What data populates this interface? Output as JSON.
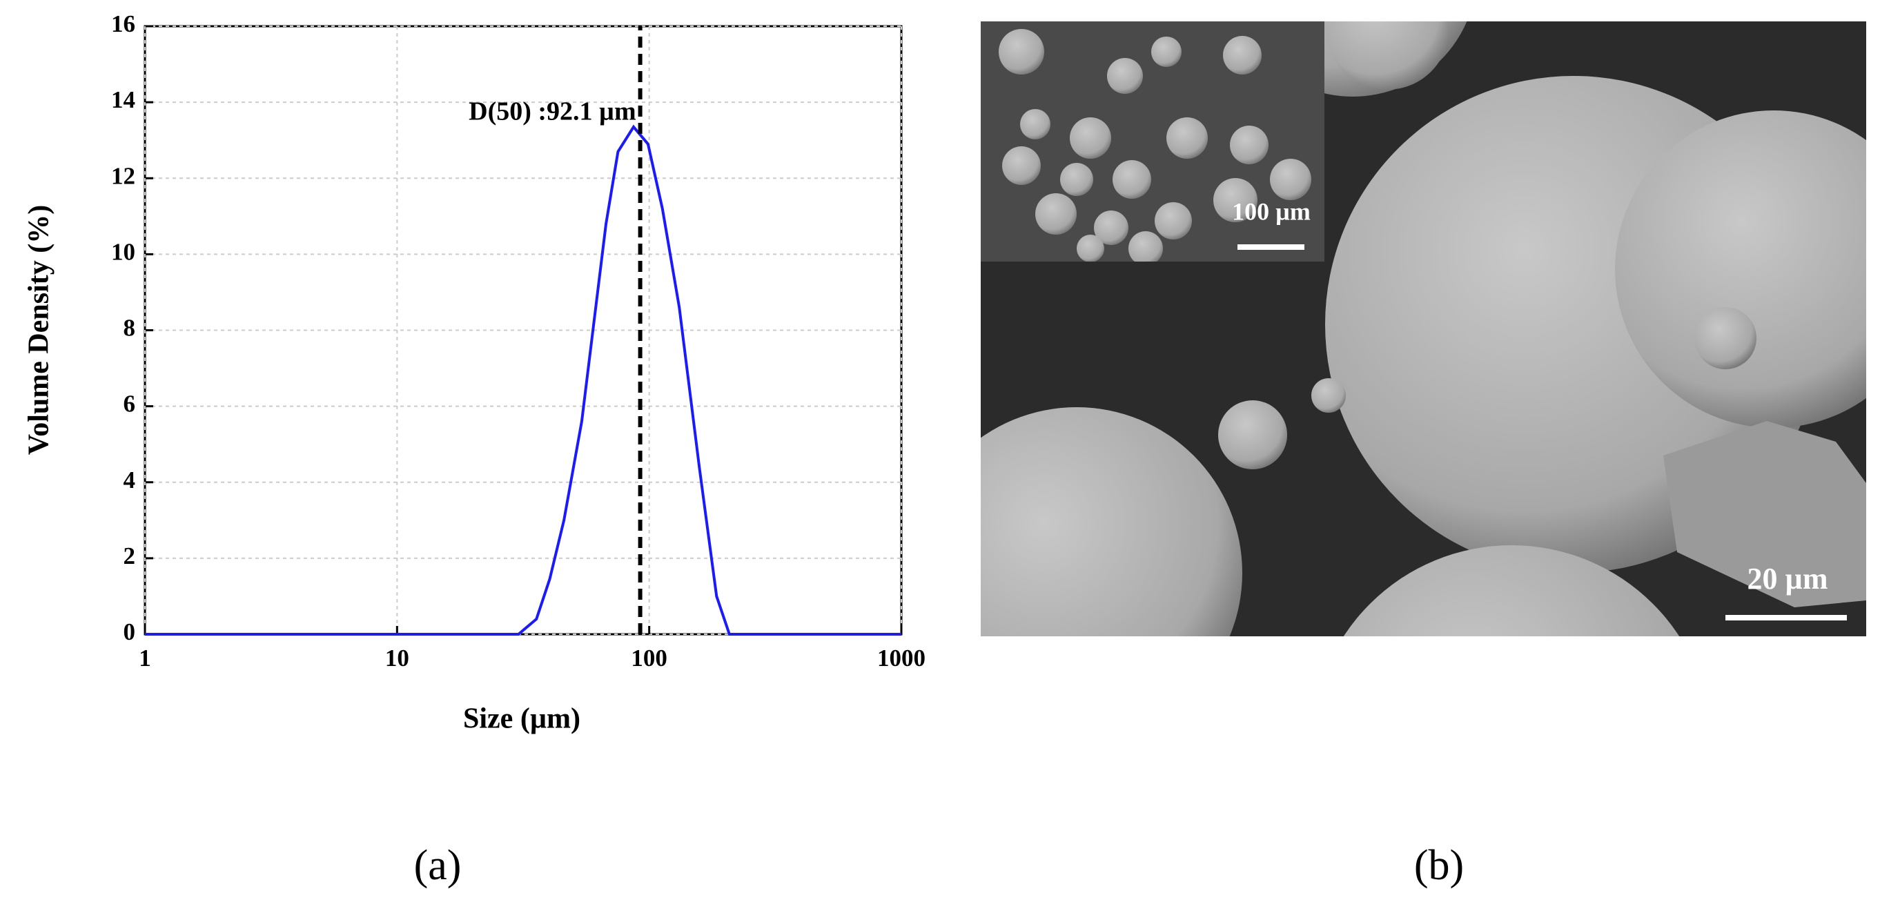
{
  "chart_data": {
    "type": "line",
    "x_label": "Size (µm)",
    "y_label": "Volume Density (%)",
    "xscale": "log",
    "xlim": [
      1,
      1000
    ],
    "xticks": [
      1,
      10,
      100,
      1000
    ],
    "ylim": [
      0,
      16
    ],
    "yticks": [
      0,
      2,
      4,
      6,
      8,
      10,
      12,
      14,
      16
    ],
    "grid": true,
    "x": [
      1,
      30.3,
      35.7,
      40.3,
      45.9,
      54,
      67.4,
      75.2,
      86.7,
      98.9,
      112.8,
      131.6,
      158,
      185,
      208,
      1000
    ],
    "series": [
      {
        "color": "#1a1aff",
        "values": [
          0,
          0,
          0.4,
          1.45,
          3,
          5.6,
          10.8,
          12.7,
          13.35,
          12.9,
          11.2,
          8.6,
          4.4,
          1,
          0,
          0
        ]
      }
    ],
    "d50": 92.1,
    "annotation": "D(50) :92.1 µm",
    "d50_color": "#000000"
  },
  "panels": {
    "a": "(a)",
    "b": "(b)"
  },
  "image": {
    "inset_scale": "100 µm",
    "scale": "20 µm"
  }
}
